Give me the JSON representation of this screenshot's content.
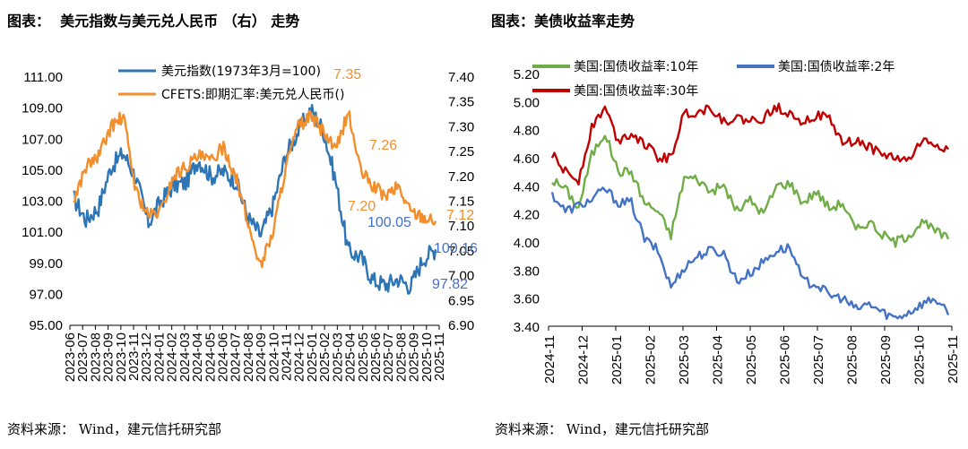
{
  "chart_data": [
    {
      "type": "line",
      "title": "图表：  美元指数与美元兑人民币 （右） 走势",
      "source": "资料来源： Wind，建元信托研究部",
      "x_labels": [
        "2023-06",
        "2023-07",
        "2023-08",
        "2023-09",
        "2023-10",
        "2023-11",
        "2023-12",
        "2024-01",
        "2024-02",
        "2024-03",
        "2024-04",
        "2024-05",
        "2024-06",
        "2024-07",
        "2024-08",
        "2024-09",
        "2024-10",
        "2024-11",
        "2024-12",
        "2025-01",
        "2025-02",
        "2025-03",
        "2025-04",
        "2025-05",
        "2025-06",
        "2025-07",
        "2025-08",
        "2025-09",
        "2025-10",
        "2025-11"
      ],
      "y_left": {
        "min": 95,
        "max": 111,
        "ticks": [
          "95.00",
          "97.00",
          "99.00",
          "101.00",
          "103.00",
          "105.00",
          "107.00",
          "109.00",
          "111.00"
        ]
      },
      "y_right": {
        "min": 6.9,
        "max": 7.4,
        "ticks": [
          "6.90",
          "6.95",
          "7.00",
          "7.05",
          "7.10",
          "7.15",
          "7.20",
          "7.25",
          "7.30",
          "7.35",
          "7.40"
        ]
      },
      "legend_placement": "top",
      "series": [
        {
          "name": "美元指数(1973年3月=100)",
          "axis": "left",
          "color": "#2e75b6",
          "values": [
            103.2,
            101.8,
            102.6,
            105.2,
            106.1,
            104.5,
            101.6,
            103.0,
            104.0,
            104.2,
            105.7,
            104.6,
            104.9,
            104.3,
            101.9,
            100.8,
            102.8,
            106.0,
            107.5,
            108.9,
            107.6,
            104.3,
            99.8,
            99.4,
            97.9,
            97.6,
            98.0,
            97.5,
            99.3,
            99.9
          ]
        },
        {
          "name": "CFETS:即期汇率:美元兑人民币()",
          "axis": "right",
          "color": "#f28e2b",
          "values": [
            7.15,
            7.22,
            7.24,
            7.3,
            7.32,
            7.17,
            7.12,
            7.13,
            7.2,
            7.22,
            7.24,
            7.23,
            7.26,
            7.2,
            7.1,
            7.02,
            7.09,
            7.22,
            7.3,
            7.32,
            7.29,
            7.25,
            7.33,
            7.21,
            7.18,
            7.16,
            7.18,
            7.13,
            7.12,
            7.11
          ]
        }
      ],
      "annotations": [
        {
          "text": "7.35",
          "axis": "right",
          "value": 7.35,
          "color": "#f28e2b"
        },
        {
          "text": "7.26",
          "axis": "right",
          "value": 7.26,
          "color": "#f28e2b"
        },
        {
          "text": "7.20",
          "axis": "right",
          "value": 7.2,
          "color": "#f28e2b"
        },
        {
          "text": "7.12",
          "axis": "right",
          "value": 7.12,
          "color": "#f28e2b"
        },
        {
          "text": "100.05",
          "axis": "left",
          "value": 100.05,
          "color": "#4472c4"
        },
        {
          "text": "100.16",
          "axis": "left",
          "value": 100.16,
          "color": "#4472c4"
        },
        {
          "text": "97.82",
          "axis": "left",
          "value": 97.82,
          "color": "#4472c4"
        }
      ]
    },
    {
      "type": "line",
      "title": "图表：美债收益率走势",
      "source": "资料来源： Wind，建元信托研究部",
      "x_labels": [
        "2024-11",
        "2024-12",
        "2025-01",
        "2025-02",
        "2025-03",
        "2025-04",
        "2025-05",
        "2025-06",
        "2025-07",
        "2025-08",
        "2025-09",
        "2025-10",
        "2025-11"
      ],
      "y_left": {
        "min": 3.4,
        "max": 5.2,
        "ticks": [
          "3.40",
          "3.60",
          "3.80",
          "4.00",
          "4.20",
          "4.40",
          "4.60",
          "4.80",
          "5.00",
          "5.20"
        ]
      },
      "legend_placement": "top-left",
      "series": [
        {
          "name": "美国:国债收益率:10年",
          "color": "#70ad47",
          "values": [
            4.44,
            4.38,
            4.24,
            4.62,
            4.78,
            4.5,
            4.5,
            4.28,
            4.22,
            4.05,
            4.46,
            4.45,
            4.36,
            4.4,
            4.22,
            4.3,
            4.2,
            4.4,
            4.42,
            4.28,
            4.36,
            4.24,
            4.28,
            4.08,
            4.15,
            4.05,
            4.0,
            4.05,
            4.14,
            4.08,
            4.02
          ]
        },
        {
          "name": "美国:国债收益率:2年",
          "color": "#4472c4",
          "values": [
            4.34,
            4.22,
            4.26,
            4.3,
            4.38,
            4.28,
            4.28,
            4.02,
            3.94,
            3.68,
            3.82,
            3.9,
            3.94,
            3.92,
            3.72,
            3.78,
            3.86,
            3.94,
            3.96,
            3.72,
            3.7,
            3.62,
            3.6,
            3.52,
            3.56,
            3.5,
            3.46,
            3.5,
            3.56,
            3.6,
            3.48
          ]
        },
        {
          "name": "美国:国债收益率:30年",
          "color": "#c00000",
          "values": [
            4.62,
            4.5,
            4.44,
            4.82,
            4.96,
            4.72,
            4.78,
            4.7,
            4.6,
            4.6,
            4.92,
            4.92,
            4.96,
            4.86,
            4.88,
            4.86,
            4.88,
            4.96,
            4.92,
            4.86,
            4.9,
            4.88,
            4.7,
            4.72,
            4.68,
            4.62,
            4.6,
            4.58,
            4.72,
            4.7,
            4.66
          ]
        }
      ]
    }
  ]
}
